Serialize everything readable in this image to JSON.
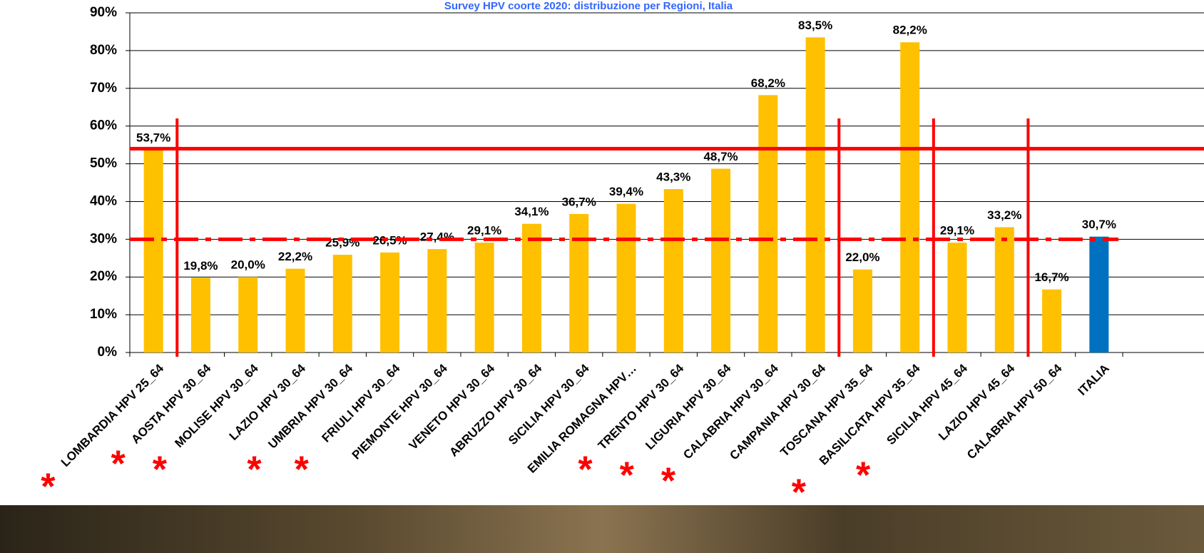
{
  "chart_data": {
    "type": "bar",
    "title": "Survey HPV coorte 2020: distribuzione per Regioni, Italia",
    "categories": [
      "LOMBARDIA HPV 25_64",
      "AOSTA HPV 30_64",
      "MOLISE HPV 30_64",
      "LAZIO HPV 30_64",
      "UMBRIA HPV 30_64",
      "FRIULI HPV 30_64",
      "PIEMONTE HPV 30_64",
      "VENETO HPV 30_64",
      "ABRUZZO HPV 30_64",
      "SICILIA HPV 30_64",
      "EMILIA ROMAGNA HPV…",
      "TRENTO HPV 30_64",
      "LIGURIA HPV 30_64",
      "CALABRIA HPV 30_64",
      "CAMPANIA HPV 30_64",
      "TOSCANA HPV 35_64",
      "BASILICATA HPV 35_64",
      "SICILIA HPV 45_64",
      "LAZIO HPV 45_64",
      "CALABRIA HPV 50_64",
      "ITALIA"
    ],
    "values": [
      53.7,
      19.8,
      20.0,
      22.2,
      25.9,
      26.5,
      27.4,
      29.1,
      34.1,
      36.7,
      39.4,
      43.3,
      48.7,
      68.2,
      83.5,
      22.0,
      82.2,
      29.1,
      33.2,
      16.7,
      30.7
    ],
    "value_labels": [
      "53,7%",
      "19,8%",
      "20,0%",
      "22,2%",
      "25,9%",
      "26,5%",
      "27,4%",
      "29,1%",
      "34,1%",
      "36,7%",
      "39,4%",
      "43,3%",
      "48,7%",
      "68,2%",
      "83,5%",
      "22,0%",
      "82,2%",
      "29,1%",
      "33,2%",
      "16,7%",
      "30,7%"
    ],
    "colors": [
      "#FFC000",
      "#FFC000",
      "#FFC000",
      "#FFC000",
      "#FFC000",
      "#FFC000",
      "#FFC000",
      "#FFC000",
      "#FFC000",
      "#FFC000",
      "#FFC000",
      "#FFC000",
      "#FFC000",
      "#FFC000",
      "#FFC000",
      "#FFC000",
      "#FFC000",
      "#FFC000",
      "#FFC000",
      "#FFC000",
      "#0070C0"
    ],
    "ylim": [
      0,
      90
    ],
    "yticks": [
      {
        "value": 0,
        "label": "0%"
      },
      {
        "value": 10,
        "label": "10%"
      },
      {
        "value": 20,
        "label": "20%"
      },
      {
        "value": 30,
        "label": "30%"
      },
      {
        "value": 40,
        "label": "40%"
      },
      {
        "value": 50,
        "label": "50%"
      },
      {
        "value": 60,
        "label": "60%"
      },
      {
        "value": 70,
        "label": "70%"
      },
      {
        "value": 80,
        "label": "80%"
      },
      {
        "value": 90,
        "label": "90%"
      }
    ],
    "grid": true,
    "reference_lines": [
      {
        "value": 54,
        "style": "solid",
        "color": "#FF0000"
      },
      {
        "value": 30,
        "style": "dashed",
        "color": "#FF0000"
      }
    ],
    "flag_text": "*",
    "flags": [
      true,
      true,
      true,
      false,
      true,
      true,
      false,
      false,
      false,
      false,
      false,
      true,
      true,
      true,
      false,
      false,
      true,
      true,
      false,
      false,
      false
    ]
  }
}
